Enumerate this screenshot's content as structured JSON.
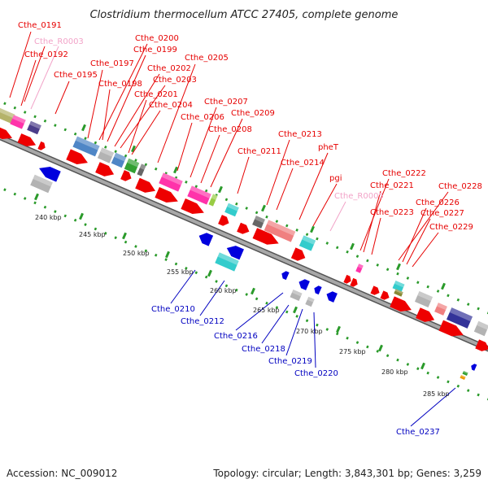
{
  "title": "Clostridium thermocellum ATCC 27405, complete genome",
  "footer": {
    "accession": "Accession: NC_009012",
    "summary": "Topology: circular; Length: 3,843,301 bp; Genes: 3,259"
  },
  "colors": {
    "forward_label": "#e60000",
    "reverse_label": "#0000c0",
    "rna_label": "#f2a3c8",
    "forward_arrow": "#ee0000",
    "reverse_arrow": "#0000dd",
    "backbone": "#9a9a9a",
    "tick": "#2a9a2a"
  },
  "scale_labels": [
    "240 kbp",
    "245 kbp",
    "250 kbp",
    "255 kbp",
    "260 kbp",
    "265 kbp",
    "270 kbp",
    "275 kbp",
    "280 kbp",
    "285 kbp"
  ],
  "forward_labels": [
    "Cthe_0191",
    "Cthe_R0003",
    "Cthe_0192",
    "Cthe_0195",
    "Cthe_0197",
    "Cthe_0198",
    "Cthe_0200",
    "Cthe_0199",
    "Cthe_0202",
    "Cthe_0203",
    "Cthe_0201",
    "Cthe_0204",
    "Cthe_0205",
    "Cthe_0206",
    "Cthe_0207",
    "Cthe_0208",
    "Cthe_0209",
    "Cthe_0211",
    "Cthe_0213",
    "Cthe_0214",
    "pheT",
    "pgi",
    "Cthe_R0005",
    "Cthe_0222",
    "Cthe_0221",
    "Cthe_0223",
    "Cthe_0228",
    "Cthe_0226",
    "Cthe_0227",
    "Cthe_0229"
  ],
  "reverse_labels": [
    "Cthe_0210",
    "Cthe_0212",
    "Cthe_0216",
    "Cthe_0218",
    "Cthe_0219",
    "Cthe_0220",
    "Cthe_0237"
  ]
}
